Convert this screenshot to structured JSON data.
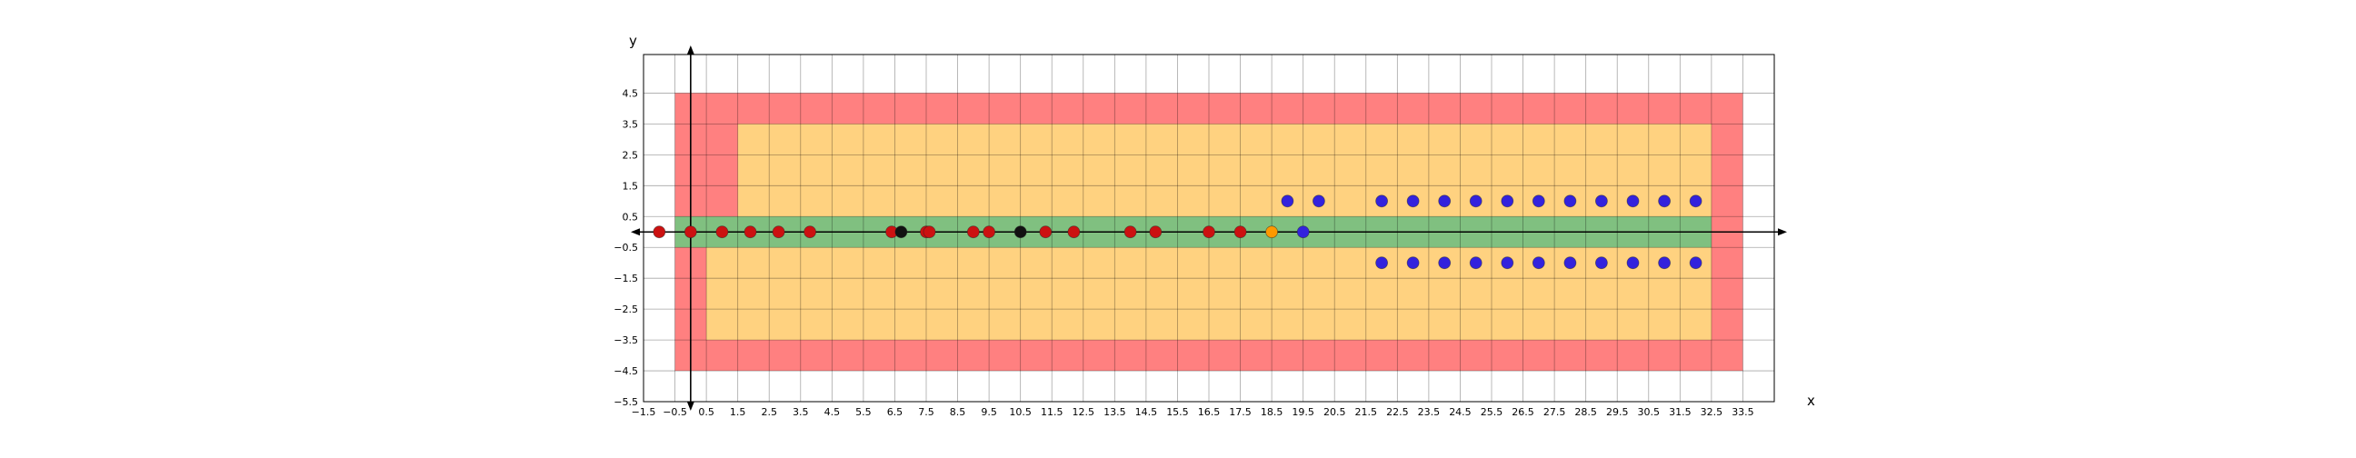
{
  "chart_data": {
    "type": "scatter",
    "title": "",
    "xlabel": "x",
    "ylabel": "y",
    "xlim": [
      -1.5,
      34.5
    ],
    "ylim": [
      -5.5,
      5.75
    ],
    "grid": true,
    "xticks": [
      "-1.5",
      "-0.5",
      "0.5",
      "1.5",
      "2.5",
      "3.5",
      "4.5",
      "5.5",
      "6.5",
      "7.5",
      "8.5",
      "9.5",
      "10.5",
      "11.5",
      "12.5",
      "13.5",
      "14.5",
      "15.5",
      "16.5",
      "17.5",
      "18.5",
      "19.5",
      "20.5",
      "21.5",
      "22.5",
      "23.5",
      "24.5",
      "25.5",
      "26.5",
      "27.5",
      "28.5",
      "29.5",
      "30.5",
      "31.5",
      "32.5",
      "33.5"
    ],
    "yticks": [
      "4.5",
      "3.5",
      "2.5",
      "1.5",
      "0.5",
      "-0.5",
      "-1.5",
      "-2.5",
      "-3.5",
      "-4.5",
      "-5.5"
    ],
    "regions": [
      {
        "color": "#ff8080",
        "points": [
          [
            -0.5,
            4.5
          ],
          [
            33.5,
            4.5
          ],
          [
            33.5,
            -4.5
          ],
          [
            -0.5,
            -4.5
          ]
        ]
      },
      {
        "color": "#ffd280",
        "points": [
          [
            1.5,
            3.5
          ],
          [
            32.5,
            3.5
          ],
          [
            32.5,
            -3.5
          ],
          [
            0.5,
            -3.5
          ],
          [
            0.5,
            -0.5
          ],
          [
            1.5,
            -0.5
          ]
        ]
      },
      {
        "color": "#80c080",
        "points": [
          [
            -0.5,
            0.5
          ],
          [
            32.5,
            0.5
          ],
          [
            32.5,
            -0.5
          ],
          [
            -0.5,
            -0.5
          ]
        ]
      }
    ],
    "series": [
      {
        "color": "#cc1111",
        "points": [
          [
            -1,
            0
          ],
          [
            0,
            0
          ],
          [
            1,
            0
          ],
          [
            1.9,
            0
          ],
          [
            2.8,
            0
          ],
          [
            3.8,
            0
          ],
          [
            6.4,
            0
          ],
          [
            7.5,
            0
          ],
          [
            7.6,
            0
          ],
          [
            9,
            0
          ],
          [
            9.5,
            0
          ],
          [
            11.3,
            0
          ],
          [
            12.2,
            0
          ],
          [
            14,
            0
          ],
          [
            14.8,
            0
          ],
          [
            16.5,
            0
          ],
          [
            17.5,
            0
          ]
        ]
      },
      {
        "color": "#111111",
        "points": [
          [
            6.7,
            0
          ],
          [
            10.5,
            0
          ]
        ]
      },
      {
        "color": "#ff9900",
        "points": [
          [
            18.5,
            0
          ]
        ]
      },
      {
        "color": "#3322dd",
        "points": [
          [
            19.5,
            0
          ],
          [
            19,
            1
          ],
          [
            20,
            1
          ],
          [
            22,
            1
          ],
          [
            23,
            1
          ],
          [
            24,
            1
          ],
          [
            25,
            1
          ],
          [
            26,
            1
          ],
          [
            27,
            1
          ],
          [
            28,
            1
          ],
          [
            29,
            1
          ],
          [
            30,
            1
          ],
          [
            31,
            1
          ],
          [
            32,
            1
          ],
          [
            22,
            -1
          ],
          [
            23,
            -1
          ],
          [
            24,
            -1
          ],
          [
            25,
            -1
          ],
          [
            26,
            -1
          ],
          [
            27,
            -1
          ],
          [
            28,
            -1
          ],
          [
            29,
            -1
          ],
          [
            30,
            -1
          ],
          [
            31,
            -1
          ],
          [
            32,
            -1
          ]
        ]
      }
    ]
  }
}
